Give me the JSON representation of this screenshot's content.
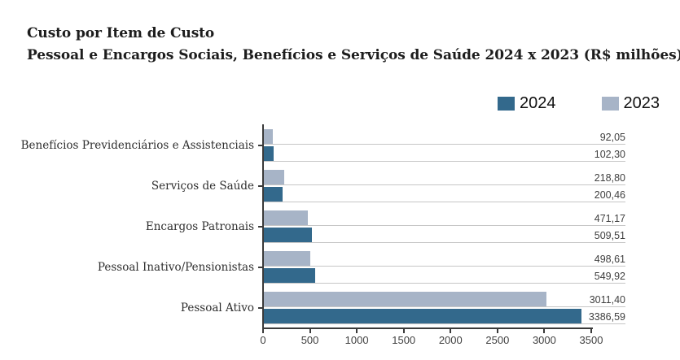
{
  "title": {
    "line1": "Custo por Item de Custo",
    "line2": "Pessoal e Encargos Sociais, Benefícios e Serviços de Saúde 2024 x 2023 (R$ milhões)"
  },
  "legend": [
    {
      "label": "2024",
      "color": "#33698c"
    },
    {
      "label": "2023",
      "color": "#a7b4c7"
    }
  ],
  "colors": {
    "bar_2024": "#33698c",
    "bar_2023": "#a7b4c7",
    "axis": "#3a3a3a",
    "leader_line": "#c6c6c6",
    "title_text": "#1d1d1d",
    "value_text": "#3f3f3f"
  },
  "chart_data": {
    "type": "bar",
    "orientation": "horizontal",
    "title": "Custo por Item de Custo — Pessoal e Encargos Sociais, Benefícios e Serviços de Saúde 2024 x 2023 (R$ milhões)",
    "categories": [
      "Benefícios Previdenciários e Assistenciais",
      "Serviços de Saúde",
      "Encargos Patronais",
      "Pessoal Inativo/Pensionistas",
      "Pessoal Ativo"
    ],
    "series": [
      {
        "name": "2024",
        "color": "#33698c",
        "values": [
          102.3,
          200.46,
          509.51,
          549.92,
          3386.59
        ],
        "labels": [
          "102,30",
          "200,46",
          "509,51",
          "549,92",
          "3386,59"
        ]
      },
      {
        "name": "2023",
        "color": "#a7b4c7",
        "values": [
          92.05,
          218.8,
          471.17,
          498.61,
          3011.4
        ],
        "labels": [
          "92,05",
          "218,80",
          "471,17",
          "498,61",
          "3011,40"
        ]
      }
    ],
    "bar_order_top_to_bottom": [
      "2023",
      "2024"
    ],
    "value_labels_shown": true,
    "x_axis": {
      "min": 0,
      "max": 3500,
      "ticks": [
        "0",
        "500",
        "1000",
        "1500",
        "2000",
        "2500",
        "3000",
        "3500"
      ]
    },
    "grid": "per-bar leader lines extending to right-aligned value labels",
    "legend_position": "top-right"
  }
}
